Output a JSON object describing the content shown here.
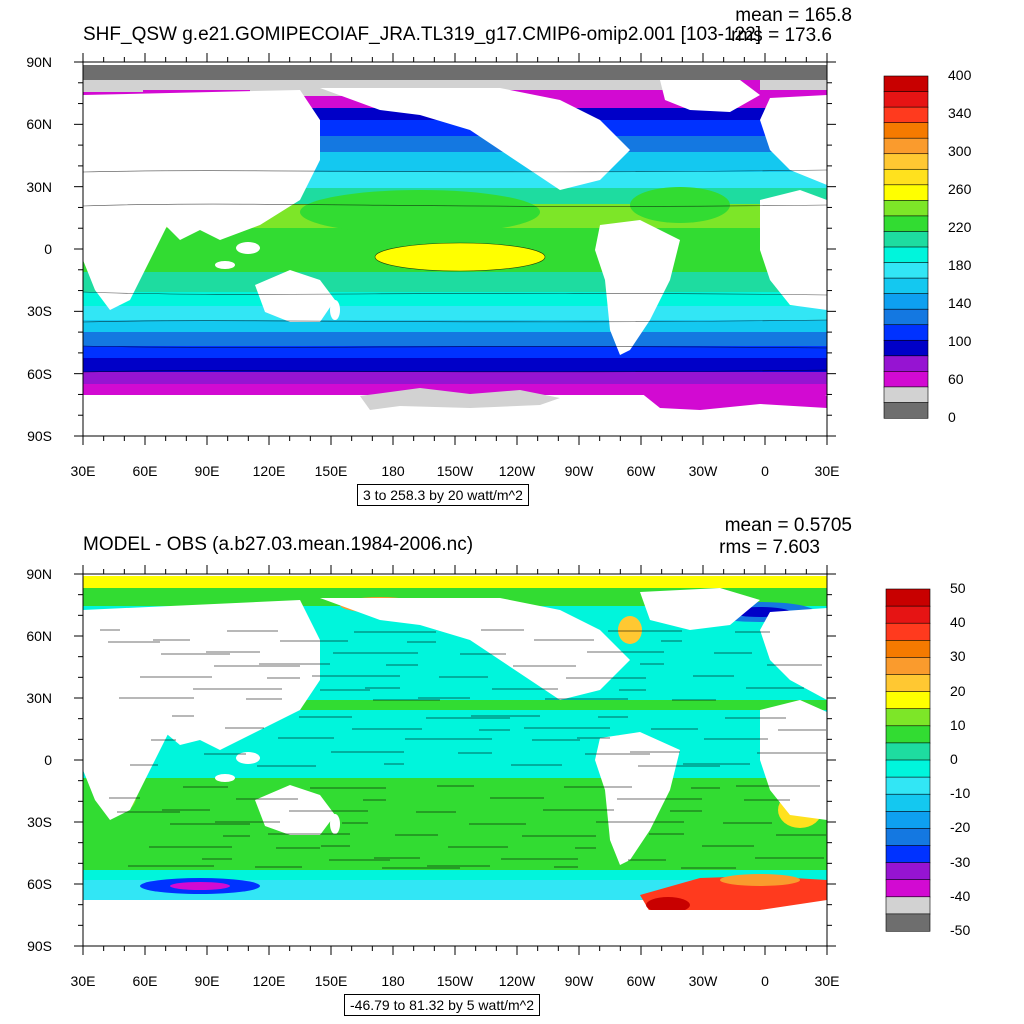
{
  "panels": [
    {
      "title": "SHF_QSW g.e21.GOMIPECOIAF_JRA.TL319_g17.CMIP6-omip2.001 [103-122]",
      "mean_text": "mean = 165.8",
      "rms_text": "rms = 173.6",
      "info": "3 to 258.3 by 20 watt/m^2",
      "y_ticks": [
        "90N",
        "60N",
        "30N",
        "0",
        "30S",
        "60S",
        "90S"
      ],
      "x_ticks": [
        "30E",
        "60E",
        "90E",
        "120E",
        "150E",
        "180",
        "150W",
        "120W",
        "90W",
        "60W",
        "30W",
        "0",
        "30E"
      ],
      "colorbar": {
        "labels": [
          "400",
          "340",
          "300",
          "260",
          "220",
          "180",
          "140",
          "100",
          "60",
          "0"
        ],
        "colors": [
          "#c80000",
          "#e61414",
          "#ff3a1e",
          "#f57a00",
          "#fa9b2d",
          "#ffc832",
          "#ffe11e",
          "#ffff00",
          "#7de628",
          "#32dc32",
          "#1edca0",
          "#00f5dc",
          "#32e6f5",
          "#14c8f0",
          "#0ea0f0",
          "#1478e1",
          "#0032ff",
          "#0000c8",
          "#9614d2",
          "#d20ad2",
          "#d2d2d2",
          "#6e6e6e"
        ]
      }
    },
    {
      "title": "MODEL - OBS (a.b27.03.mean.1984-2006.nc)",
      "mean_text": "mean = 0.5705",
      "rms_text": "rms = 7.603",
      "info": "-46.79 to 81.32 by 5 watt/m^2",
      "y_ticks": [
        "90N",
        "60N",
        "30N",
        "0",
        "30S",
        "60S",
        "90S"
      ],
      "x_ticks": [
        "30E",
        "60E",
        "90E",
        "120E",
        "150E",
        "180",
        "150W",
        "120W",
        "90W",
        "60W",
        "30W",
        "0",
        "30E"
      ],
      "colorbar": {
        "labels": [
          "50",
          "40",
          "30",
          "20",
          "10",
          "0",
          "-10",
          "-20",
          "-30",
          "-40",
          "-50"
        ],
        "colors": [
          "#c80000",
          "#e61414",
          "#ff3a1e",
          "#f57a00",
          "#fa9b2d",
          "#ffc832",
          "#ffff00",
          "#7de628",
          "#32dc32",
          "#1edca0",
          "#00f5dc",
          "#32e6f5",
          "#14c8f0",
          "#0ea0f0",
          "#1478e1",
          "#0032ff",
          "#9614d2",
          "#d20ad2",
          "#d2d2d2",
          "#6e6e6e"
        ]
      }
    }
  ]
}
